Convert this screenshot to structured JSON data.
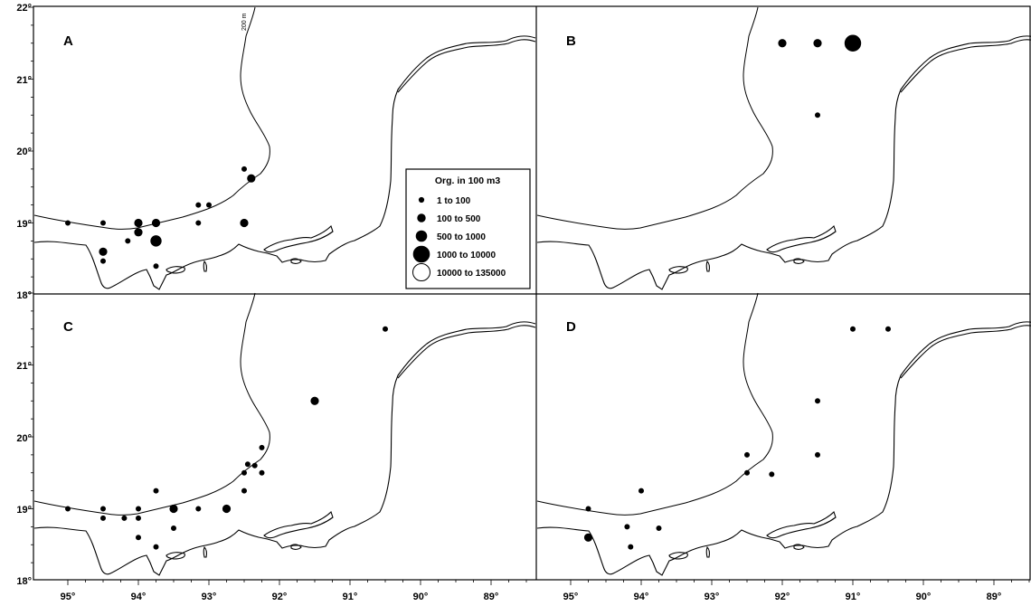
{
  "figure": {
    "lat_labels": [
      "22°",
      "21°",
      "20°",
      "19°",
      "18°"
    ],
    "lon_labels": [
      "95°",
      "94°",
      "93°",
      "92°",
      "91°",
      "90°",
      "89°"
    ],
    "isobath_label": "200 m",
    "colors": {
      "ink": "#000000",
      "background": "#ffffff"
    }
  },
  "legend": {
    "title": "Org. in 100 m3",
    "classes": [
      {
        "label": "1  to  100",
        "size_class": 1,
        "fill": "#000000"
      },
      {
        "label": "100  to  500",
        "size_class": 2,
        "fill": "#000000"
      },
      {
        "label": "500  to  1000",
        "size_class": 3,
        "fill": "#000000"
      },
      {
        "label": "1000  to  10000",
        "size_class": 4,
        "fill": "#000000"
      },
      {
        "label": "10000  to  135000",
        "size_class": 5,
        "fill": "#ffffff"
      }
    ]
  },
  "panels": [
    {
      "letter": "A",
      "stations": [
        {
          "lon": 95.0,
          "lat": 19.0,
          "size_class": 1
        },
        {
          "lon": 94.5,
          "lat": 19.0,
          "size_class": 1
        },
        {
          "lon": 94.0,
          "lat": 19.0,
          "size_class": 2
        },
        {
          "lon": 93.75,
          "lat": 19.0,
          "size_class": 2
        },
        {
          "lon": 93.15,
          "lat": 19.0,
          "size_class": 1
        },
        {
          "lon": 93.15,
          "lat": 19.25,
          "size_class": 1
        },
        {
          "lon": 93.0,
          "lat": 19.25,
          "size_class": 1
        },
        {
          "lon": 92.5,
          "lat": 19.0,
          "size_class": 2
        },
        {
          "lon": 92.5,
          "lat": 19.75,
          "size_class": 1
        },
        {
          "lon": 92.4,
          "lat": 19.62,
          "size_class": 2
        },
        {
          "lon": 94.0,
          "lat": 18.87,
          "size_class": 2
        },
        {
          "lon": 94.15,
          "lat": 18.75,
          "size_class": 1
        },
        {
          "lon": 93.75,
          "lat": 18.75,
          "size_class": 3
        },
        {
          "lon": 94.5,
          "lat": 18.6,
          "size_class": 2
        },
        {
          "lon": 94.5,
          "lat": 18.47,
          "size_class": 1
        },
        {
          "lon": 93.75,
          "lat": 18.4,
          "size_class": 1
        }
      ]
    },
    {
      "letter": "B",
      "stations": [
        {
          "lon": 92.0,
          "lat": 21.5,
          "size_class": 2
        },
        {
          "lon": 91.5,
          "lat": 21.5,
          "size_class": 2
        },
        {
          "lon": 91.0,
          "lat": 21.5,
          "size_class": 4
        },
        {
          "lon": 91.5,
          "lat": 20.5,
          "size_class": 1
        }
      ]
    },
    {
      "letter": "C",
      "stations": [
        {
          "lon": 90.5,
          "lat": 21.5,
          "size_class": 1
        },
        {
          "lon": 91.5,
          "lat": 20.5,
          "size_class": 2
        },
        {
          "lon": 92.25,
          "lat": 19.85,
          "size_class": 1
        },
        {
          "lon": 92.45,
          "lat": 19.62,
          "size_class": 1
        },
        {
          "lon": 92.35,
          "lat": 19.6,
          "size_class": 1
        },
        {
          "lon": 92.5,
          "lat": 19.5,
          "size_class": 1
        },
        {
          "lon": 92.25,
          "lat": 19.5,
          "size_class": 1
        },
        {
          "lon": 92.5,
          "lat": 19.25,
          "size_class": 1
        },
        {
          "lon": 93.75,
          "lat": 19.25,
          "size_class": 1
        },
        {
          "lon": 92.75,
          "lat": 19.0,
          "size_class": 2
        },
        {
          "lon": 93.15,
          "lat": 19.0,
          "size_class": 1
        },
        {
          "lon": 93.5,
          "lat": 19.0,
          "size_class": 2
        },
        {
          "lon": 95.0,
          "lat": 19.0,
          "size_class": 1
        },
        {
          "lon": 94.5,
          "lat": 19.0,
          "size_class": 1
        },
        {
          "lon": 94.0,
          "lat": 19.0,
          "size_class": 1
        },
        {
          "lon": 94.5,
          "lat": 18.87,
          "size_class": 1
        },
        {
          "lon": 94.2,
          "lat": 18.87,
          "size_class": 1
        },
        {
          "lon": 94.0,
          "lat": 18.87,
          "size_class": 1
        },
        {
          "lon": 93.5,
          "lat": 18.73,
          "size_class": 1
        },
        {
          "lon": 94.0,
          "lat": 18.6,
          "size_class": 1
        },
        {
          "lon": 93.75,
          "lat": 18.47,
          "size_class": 1
        }
      ]
    },
    {
      "letter": "D",
      "stations": [
        {
          "lon": 91.0,
          "lat": 21.5,
          "size_class": 1
        },
        {
          "lon": 90.5,
          "lat": 21.5,
          "size_class": 1
        },
        {
          "lon": 91.5,
          "lat": 20.5,
          "size_class": 1
        },
        {
          "lon": 91.5,
          "lat": 19.75,
          "size_class": 1
        },
        {
          "lon": 92.5,
          "lat": 19.75,
          "size_class": 1
        },
        {
          "lon": 92.5,
          "lat": 19.5,
          "size_class": 1
        },
        {
          "lon": 92.15,
          "lat": 19.48,
          "size_class": 1
        },
        {
          "lon": 94.0,
          "lat": 19.25,
          "size_class": 1
        },
        {
          "lon": 94.75,
          "lat": 19.0,
          "size_class": 1
        },
        {
          "lon": 94.2,
          "lat": 18.75,
          "size_class": 1
        },
        {
          "lon": 93.75,
          "lat": 18.73,
          "size_class": 1
        },
        {
          "lon": 94.75,
          "lat": 18.6,
          "size_class": 2
        },
        {
          "lon": 94.15,
          "lat": 18.47,
          "size_class": 1
        }
      ]
    }
  ]
}
